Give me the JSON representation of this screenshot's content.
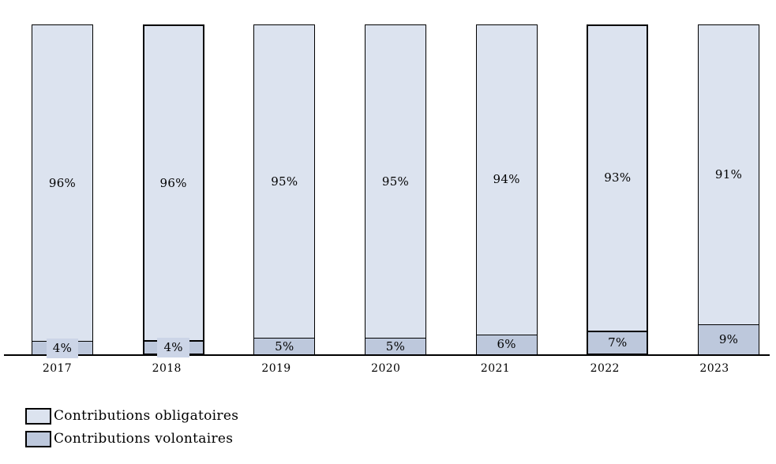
{
  "chart_data": {
    "type": "bar",
    "stacked": true,
    "title": "",
    "xlabel": "",
    "ylabel": "",
    "ylim": [
      0,
      100
    ],
    "grid": false,
    "legend_position": "bottom-left",
    "axis_line_color": "#000000",
    "bar_outline_color": "#000000",
    "label_color": "#000000",
    "small_label_bg": "#ccd5e7",
    "categories": [
      "2017",
      "2018",
      "2019",
      "2020",
      "2021",
      "2022",
      "2023"
    ],
    "emphasized_categories": [
      "2018",
      "2022"
    ],
    "series": [
      {
        "name": "Contributions obligatoires",
        "color": "#dce3ef",
        "values": [
          96,
          96,
          95,
          95,
          94,
          93,
          91
        ],
        "labels": [
          "96%",
          "96%",
          "95%",
          "95%",
          "94%",
          "93%",
          "91%"
        ]
      },
      {
        "name": "Contributions volontaires",
        "color": "#bdc8dc",
        "values": [
          4,
          4,
          5,
          5,
          6,
          7,
          9
        ],
        "labels": [
          "4%",
          "4%",
          "5%",
          "5%",
          "6%",
          "7%",
          "9%"
        ]
      }
    ]
  },
  "legend": {
    "items": [
      {
        "label": "Contributions obligatoires",
        "swatch_color": "#dce3ef"
      },
      {
        "label": "Contributions volontaires",
        "swatch_color": "#bdc8dc"
      }
    ]
  }
}
